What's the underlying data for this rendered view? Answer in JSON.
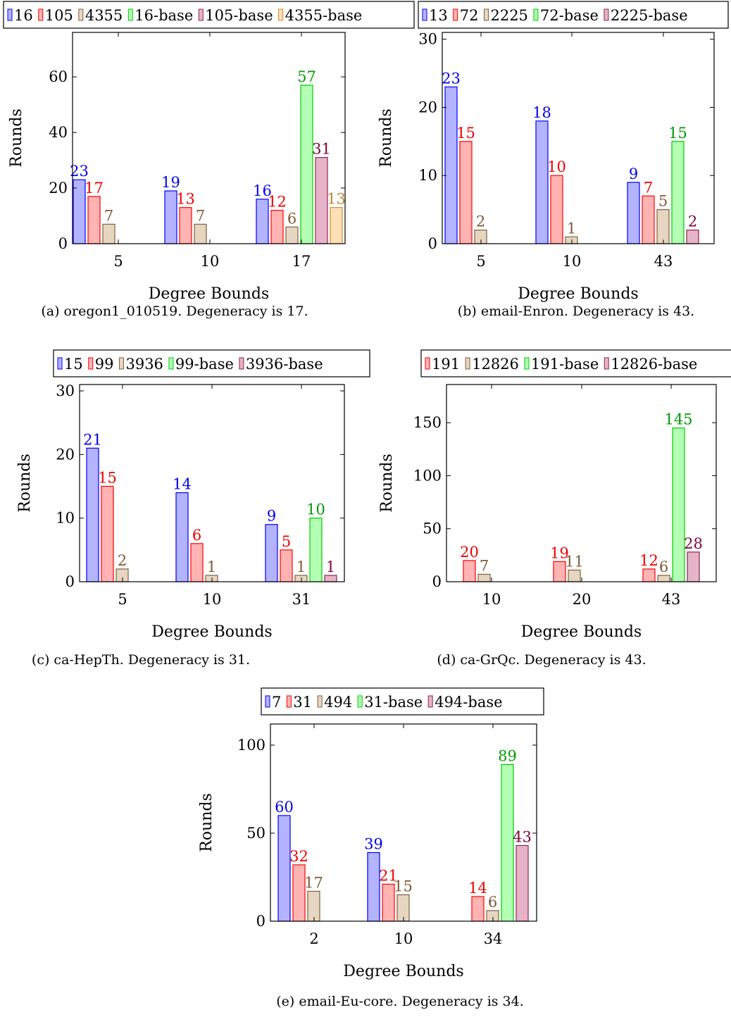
{
  "palette": {
    "b0": {
      "fill": "#b3b3ff",
      "stroke": "#0000ff",
      "label": "#0000ee"
    },
    "b1": {
      "fill": "#ffb3b3",
      "stroke": "#ff0000",
      "label": "#ee0000"
    },
    "b2": {
      "fill": "#e6d6c1",
      "stroke": "#806040",
      "label": "#7f5a36"
    },
    "b3": {
      "fill": "#b3ffb3",
      "stroke": "#00cc00",
      "label": "#009900"
    },
    "b4": {
      "fill": "#e6b3c8",
      "stroke": "#8c2650",
      "label": "#800040"
    },
    "b5": {
      "fill": "#ffe0b8",
      "stroke": "#d08a30",
      "label": "#b8862f"
    }
  },
  "chart_data": [
    {
      "type": "bar",
      "caption": "(a) oregon1_010519. Degeneracy is 17.",
      "xlabel": "Degree Bounds",
      "ylabel": "Rounds",
      "categories": [
        "5",
        "10",
        "17"
      ],
      "yticks": [
        0,
        20,
        40,
        60
      ],
      "ylim": [
        0,
        76
      ],
      "series": [
        {
          "name": "16",
          "color": "b0",
          "values": [
            23,
            19,
            16
          ]
        },
        {
          "name": "105",
          "color": "b1",
          "values": [
            17,
            13,
            12
          ]
        },
        {
          "name": "4355",
          "color": "b2",
          "values": [
            7,
            7,
            6
          ]
        },
        {
          "name": "16-base",
          "color": "b3",
          "values": [
            null,
            null,
            57
          ]
        },
        {
          "name": "105-base",
          "color": "b4",
          "values": [
            null,
            null,
            31
          ]
        },
        {
          "name": "4355-base",
          "color": "b5",
          "values": [
            null,
            null,
            13
          ]
        }
      ]
    },
    {
      "type": "bar",
      "caption": "(b) email-Enron. Degeneracy is 43.",
      "xlabel": "Degree Bounds",
      "ylabel": "Rounds",
      "categories": [
        "5",
        "10",
        "43"
      ],
      "yticks": [
        0,
        10,
        20,
        30
      ],
      "ylim": [
        0,
        31
      ],
      "series": [
        {
          "name": "13",
          "color": "b0",
          "values": [
            23,
            18,
            9
          ]
        },
        {
          "name": "72",
          "color": "b1",
          "values": [
            15,
            10,
            7
          ]
        },
        {
          "name": "2225",
          "color": "b2",
          "values": [
            2,
            1,
            5
          ]
        },
        {
          "name": "72-base",
          "color": "b3",
          "values": [
            null,
            null,
            15
          ]
        },
        {
          "name": "2225-base",
          "color": "b4",
          "values": [
            null,
            null,
            2
          ]
        }
      ]
    },
    {
      "type": "bar",
      "caption": "(c) ca-HepTh. Degeneracy is 31.",
      "xlabel": "Degree Bounds",
      "ylabel": "Rounds",
      "categories": [
        "5",
        "10",
        "31"
      ],
      "yticks": [
        0,
        10,
        20,
        30
      ],
      "ylim": [
        0,
        31
      ],
      "series": [
        {
          "name": "15",
          "color": "b0",
          "values": [
            21,
            14,
            9
          ]
        },
        {
          "name": "99",
          "color": "b1",
          "values": [
            15,
            6,
            5
          ]
        },
        {
          "name": "3936",
          "color": "b2",
          "values": [
            2,
            1,
            1
          ]
        },
        {
          "name": "99-base",
          "color": "b3",
          "values": [
            null,
            null,
            10
          ]
        },
        {
          "name": "3936-base",
          "color": "b4",
          "values": [
            null,
            null,
            1
          ]
        }
      ]
    },
    {
      "type": "bar",
      "caption": "(d) ca-GrQc. Degeneracy is 43.",
      "xlabel": "Degree Bounds",
      "ylabel": "Rounds",
      "categories": [
        "10",
        "20",
        "43"
      ],
      "yticks": [
        0,
        50,
        100,
        150
      ],
      "ylim": [
        0,
        186
      ],
      "series": [
        {
          "name": "191",
          "color": "b1",
          "values": [
            20,
            19,
            12
          ]
        },
        {
          "name": "12826",
          "color": "b2",
          "values": [
            7,
            11,
            6
          ]
        },
        {
          "name": "191-base",
          "color": "b3",
          "values": [
            null,
            null,
            145
          ]
        },
        {
          "name": "12826-base",
          "color": "b4",
          "values": [
            null,
            null,
            28
          ]
        }
      ]
    },
    {
      "type": "bar",
      "caption": "(e) email-Eu-core. Degeneracy is 34.",
      "xlabel": "Degree Bounds",
      "ylabel": "Rounds",
      "categories": [
        "2",
        "10",
        "34"
      ],
      "yticks": [
        0,
        50,
        100
      ],
      "ylim": [
        0,
        112
      ],
      "series": [
        {
          "name": "7",
          "color": "b0",
          "values": [
            60,
            39,
            0
          ]
        },
        {
          "name": "31",
          "color": "b1",
          "values": [
            32,
            21,
            14
          ]
        },
        {
          "name": "494",
          "color": "b2",
          "values": [
            17,
            15,
            6
          ]
        },
        {
          "name": "31-base",
          "color": "b3",
          "values": [
            null,
            null,
            89
          ]
        },
        {
          "name": "494-base",
          "color": "b4",
          "values": [
            null,
            null,
            43
          ]
        }
      ]
    }
  ]
}
